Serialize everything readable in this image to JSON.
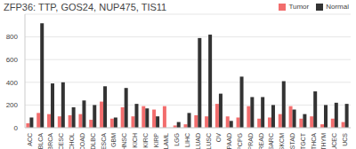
{
  "chart_data": {
    "type": "bar",
    "title": "ZFP36: TTP, GOS24, NUP475, TIS11",
    "categories": [
      "ACC",
      "BLCA",
      "BRCA",
      "CESC",
      "CHOL",
      "COAD",
      "DLBC",
      "ESCA",
      "GBM",
      "HNSC",
      "KICH",
      "KIRC",
      "KIRP",
      "LAML",
      "LGG",
      "LIHC",
      "LUAD",
      "LUSC",
      "OV",
      "PAAD",
      "PCPG",
      "PRAD",
      "READ",
      "SARC",
      "SKCM",
      "STAD",
      "TGCT",
      "THCA",
      "THYM",
      "UCEC",
      "UCS"
    ],
    "series": [
      {
        "name": "Tumor",
        "color": "#f26d6d",
        "values": [
          40,
          130,
          120,
          100,
          110,
          120,
          70,
          230,
          80,
          180,
          100,
          190,
          160,
          190,
          20,
          30,
          110,
          100,
          210,
          100,
          90,
          190,
          80,
          90,
          120,
          190,
          80,
          100,
          30,
          80,
          50
        ]
      },
      {
        "name": "Normal",
        "color": "#333333",
        "values": [
          90,
          920,
          390,
          400,
          180,
          240,
          200,
          365,
          90,
          350,
          210,
          170,
          100,
          0,
          50,
          130,
          790,
          820,
          300,
          60,
          450,
          270,
          270,
          200,
          410,
          160,
          120,
          320,
          200,
          220,
          210
        ]
      }
    ],
    "ylim": [
      0,
      1000
    ],
    "yticks": [
      0,
      200,
      400,
      600,
      800
    ],
    "grid": true
  }
}
